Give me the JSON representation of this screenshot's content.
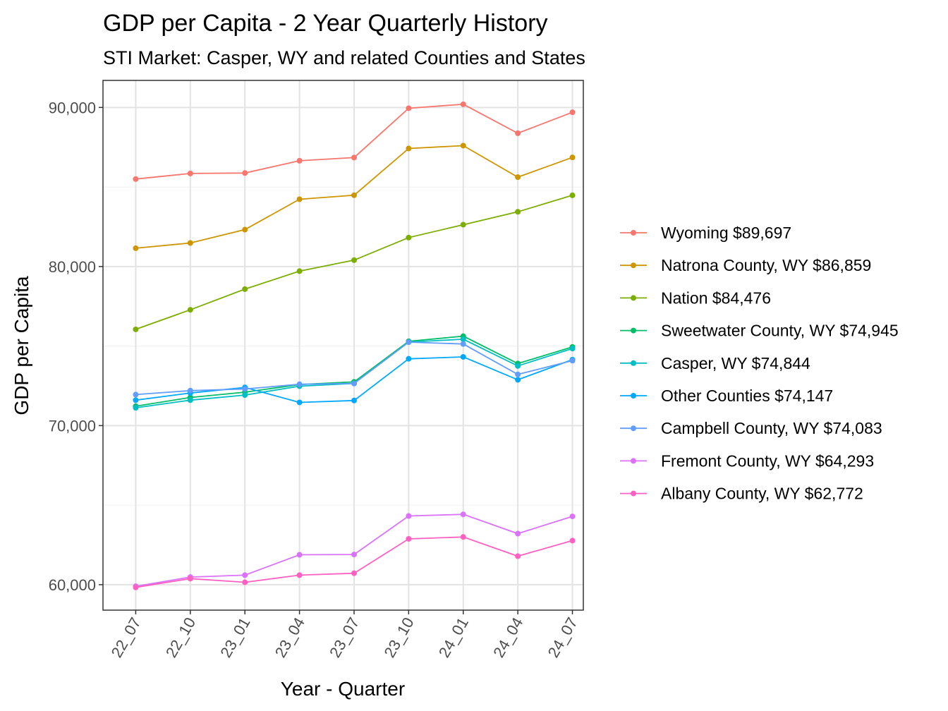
{
  "chart_data": {
    "type": "line",
    "title": "GDP per Capita - 2 Year Quarterly History",
    "subtitle": "STI Market: Casper, WY and related Counties and States",
    "xlabel": "Year - Quarter",
    "ylabel": "GDP per Capita",
    "categories": [
      "22_07",
      "22_10",
      "23_01",
      "23_04",
      "23_07",
      "23_10",
      "24_01",
      "24_04",
      "24_07"
    ],
    "ylim": [
      58400,
      91700
    ],
    "yticks": [
      60000,
      70000,
      80000,
      90000
    ],
    "ytick_labels": [
      "60,000",
      "70,000",
      "80,000",
      "90,000"
    ],
    "grid": true,
    "legend_position": "right",
    "series": [
      {
        "name": "Wyoming $89,697",
        "color": "#F8766D",
        "values": [
          85500,
          85850,
          85880,
          86650,
          86850,
          89950,
          90200,
          88380,
          89697
        ]
      },
      {
        "name": "Natrona County, WY $86,859",
        "color": "#CD9600",
        "values": [
          81150,
          81480,
          82320,
          84230,
          84480,
          87420,
          87600,
          85620,
          86859
        ]
      },
      {
        "name": "Nation $84,476",
        "color": "#7CAE00",
        "values": [
          76050,
          77280,
          78580,
          79710,
          80400,
          81820,
          82630,
          83440,
          84476
        ]
      },
      {
        "name": "Sweetwater County, WY $74,945",
        "color": "#00BE67",
        "values": [
          71220,
          71770,
          72100,
          72580,
          72750,
          75300,
          75620,
          73900,
          74945
        ]
      },
      {
        "name": "Casper, WY $74,844",
        "color": "#00BFC4",
        "values": [
          71120,
          71600,
          71920,
          72480,
          72650,
          75250,
          75430,
          73750,
          74844
        ]
      },
      {
        "name": "Other Counties $74,147",
        "color": "#00A9FF",
        "values": [
          71600,
          72050,
          72400,
          71460,
          71580,
          74200,
          74320,
          72880,
          74147
        ]
      },
      {
        "name": "Campbell County, WY $74,083",
        "color": "#619CFF",
        "values": [
          71950,
          72200,
          72300,
          72600,
          72650,
          75250,
          75130,
          73220,
          74083
        ]
      },
      {
        "name": "Fremont County, WY $64,293",
        "color": "#DB72FB",
        "values": [
          59900,
          60480,
          60600,
          61880,
          61900,
          64320,
          64420,
          63210,
          64293
        ]
      },
      {
        "name": "Albany County, WY $62,772",
        "color": "#FF61C3",
        "values": [
          59830,
          60380,
          60150,
          60600,
          60720,
          62880,
          63000,
          61790,
          62772
        ]
      }
    ]
  }
}
